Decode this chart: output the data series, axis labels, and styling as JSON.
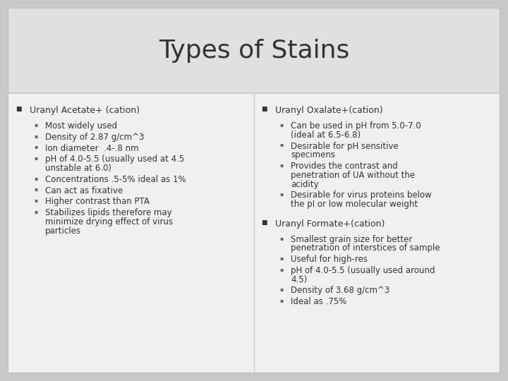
{
  "title": "Types of Stains",
  "outer_bg": "#c8c8c8",
  "slide_bg": "#ebebeb",
  "title_bg": "#e0e0e0",
  "body_bg": "#f0f0f0",
  "border_color": "#bbbbbb",
  "divider_color": "#cccccc",
  "title_font_size": 26,
  "header_font_size": 9,
  "body_font_size": 8.5,
  "text_color": "#333333",
  "sub_text_color": "#444444",
  "left_column": {
    "header": "Uranyl Acetate+ (cation)",
    "items": [
      [
        "Most widely used"
      ],
      [
        "Density of 2.87 g/cm^3"
      ],
      [
        "Ion diameter  .4-.8 nm"
      ],
      [
        "pH of 4.0-5.5 (usually used at 4.5",
        "unstable at 6.0)"
      ],
      [
        "Concentrations .5-5% ideal as 1%"
      ],
      [
        "Can act as fixative"
      ],
      [
        "Higher contrast than PTA"
      ],
      [
        "Stabilizes lipids therefore may",
        "minimize drying effect of virus",
        "particles"
      ]
    ]
  },
  "right_column": {
    "sections": [
      {
        "header": "Uranyl Oxalate+(cation)",
        "items": [
          [
            "Can be used in pH from 5.0-7.0",
            "(ideal at 6.5-6.8)"
          ],
          [
            "Desirable for pH sensitive",
            "specimens"
          ],
          [
            "Provides the contrast and",
            "penetration of UA without the",
            "acidity"
          ],
          [
            "Desirable for virus proteins below",
            "the pI or low molecular weight"
          ]
        ]
      },
      {
        "header": "Uranyl Formate+(cation)",
        "items": [
          [
            "Smallest grain size for better",
            "penetration of interstices of sample"
          ],
          [
            "Useful for high-res"
          ],
          [
            "pH of 4.0-5.5 (usually used around",
            "4.5)"
          ],
          [
            "Density of 3.68 g/cm^3"
          ],
          [
            "Ideal as .75%"
          ]
        ]
      }
    ]
  }
}
